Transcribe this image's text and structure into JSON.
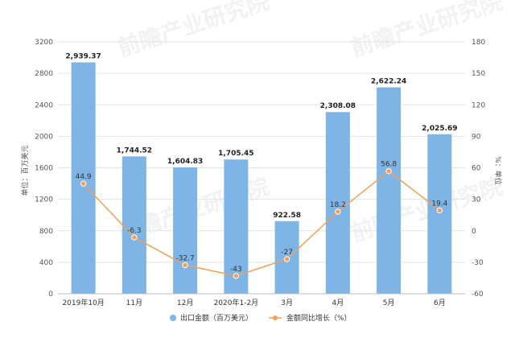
{
  "chart_data": {
    "type": "bar+line",
    "categories": [
      "2019年10月",
      "11月",
      "12月",
      "2020年1-2月",
      "3月",
      "4月",
      "5月",
      "6月"
    ],
    "series": [
      {
        "name": "出口金额（百万美元）",
        "type": "bar",
        "axis": "left",
        "values": [
          2939.37,
          1744.52,
          1604.83,
          1705.45,
          922.58,
          2308.08,
          2622.24,
          2025.69
        ],
        "labels": [
          "2,939.37",
          "1,744.52",
          "1,604.83",
          "1,705.45",
          "922.58",
          "2,308.08",
          "2,622.24",
          "2,025.69"
        ],
        "color": "#7fb4e6"
      },
      {
        "name": "金额同比增长（%）",
        "type": "line",
        "axis": "right",
        "values": [
          44.9,
          -6.3,
          -32.7,
          -43,
          -27,
          18.2,
          56.8,
          19.4
        ],
        "labels": [
          "44.9",
          "-6.3",
          "-32.7",
          "-43",
          "-27",
          "18.2",
          "56.8",
          "19.4"
        ],
        "color": "#f0a05a"
      }
    ],
    "ylabel_left": "单位：百万美元",
    "ylabel_right": "%：单位",
    "ylim_left": [
      0,
      3200
    ],
    "yticks_left": [
      "0",
      "400",
      "800",
      "1200",
      "1600",
      "2000",
      "2400",
      "2800",
      "3200"
    ],
    "ylim_right": [
      -60,
      180
    ],
    "yticks_right": [
      "-60",
      "-30",
      "0",
      "30",
      "60",
      "90",
      "120",
      "150",
      "180"
    ],
    "grid": true,
    "legend_position": "bottom"
  },
  "watermark": "前瞻产业研究院"
}
